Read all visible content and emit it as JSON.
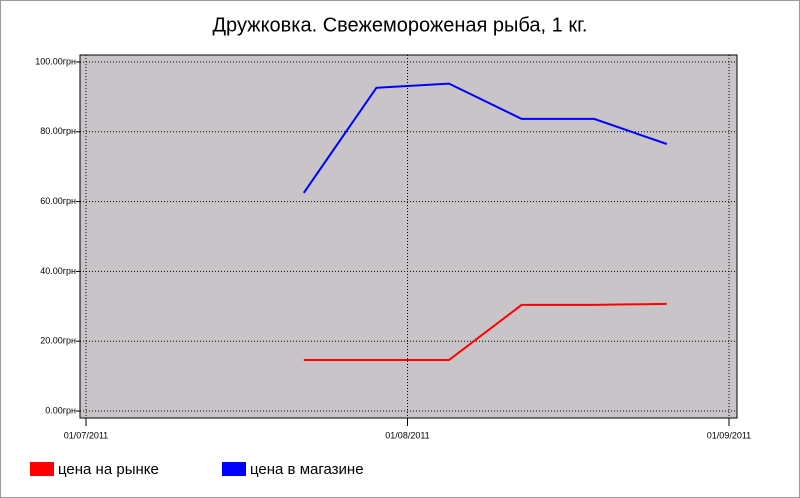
{
  "chart_data": {
    "type": "line",
    "title": "Дружковка. Свежемороженая рыба, 1 кг.",
    "x": [
      "2011-07-22",
      "2011-07-29",
      "2011-08-05",
      "2011-08-12",
      "2011-08-19",
      "2011-08-26"
    ],
    "series": [
      {
        "name": "цена на рынке",
        "color": "#ff0000",
        "values": [
          14.6,
          14.6,
          14.6,
          30.4,
          30.4,
          30.7
        ]
      },
      {
        "name": "цена в магазине",
        "color": "#0000ff",
        "values": [
          62.5,
          92.6,
          93.8,
          83.7,
          83.7,
          76.5
        ]
      }
    ],
    "xlim": [
      "2011-07-01",
      "2011-09-01"
    ],
    "xticks": [
      {
        "value": "2011-07-01",
        "label": "01/07/2011"
      },
      {
        "value": "2011-08-01",
        "label": "01/08/2011"
      },
      {
        "value": "2011-09-01",
        "label": "01/09/2011"
      }
    ],
    "ylim": [
      -2,
      102
    ],
    "yticks": [
      {
        "value": 0,
        "label": "0.00грн"
      },
      {
        "value": 20,
        "label": "20.00грн"
      },
      {
        "value": 40,
        "label": "40.00грн"
      },
      {
        "value": 60,
        "label": "60.00грн"
      },
      {
        "value": 80,
        "label": "80.00грн"
      },
      {
        "value": 100,
        "label": "100.00грн"
      }
    ],
    "grid": true,
    "background": "#c8c4c8",
    "legend": "bottom"
  }
}
